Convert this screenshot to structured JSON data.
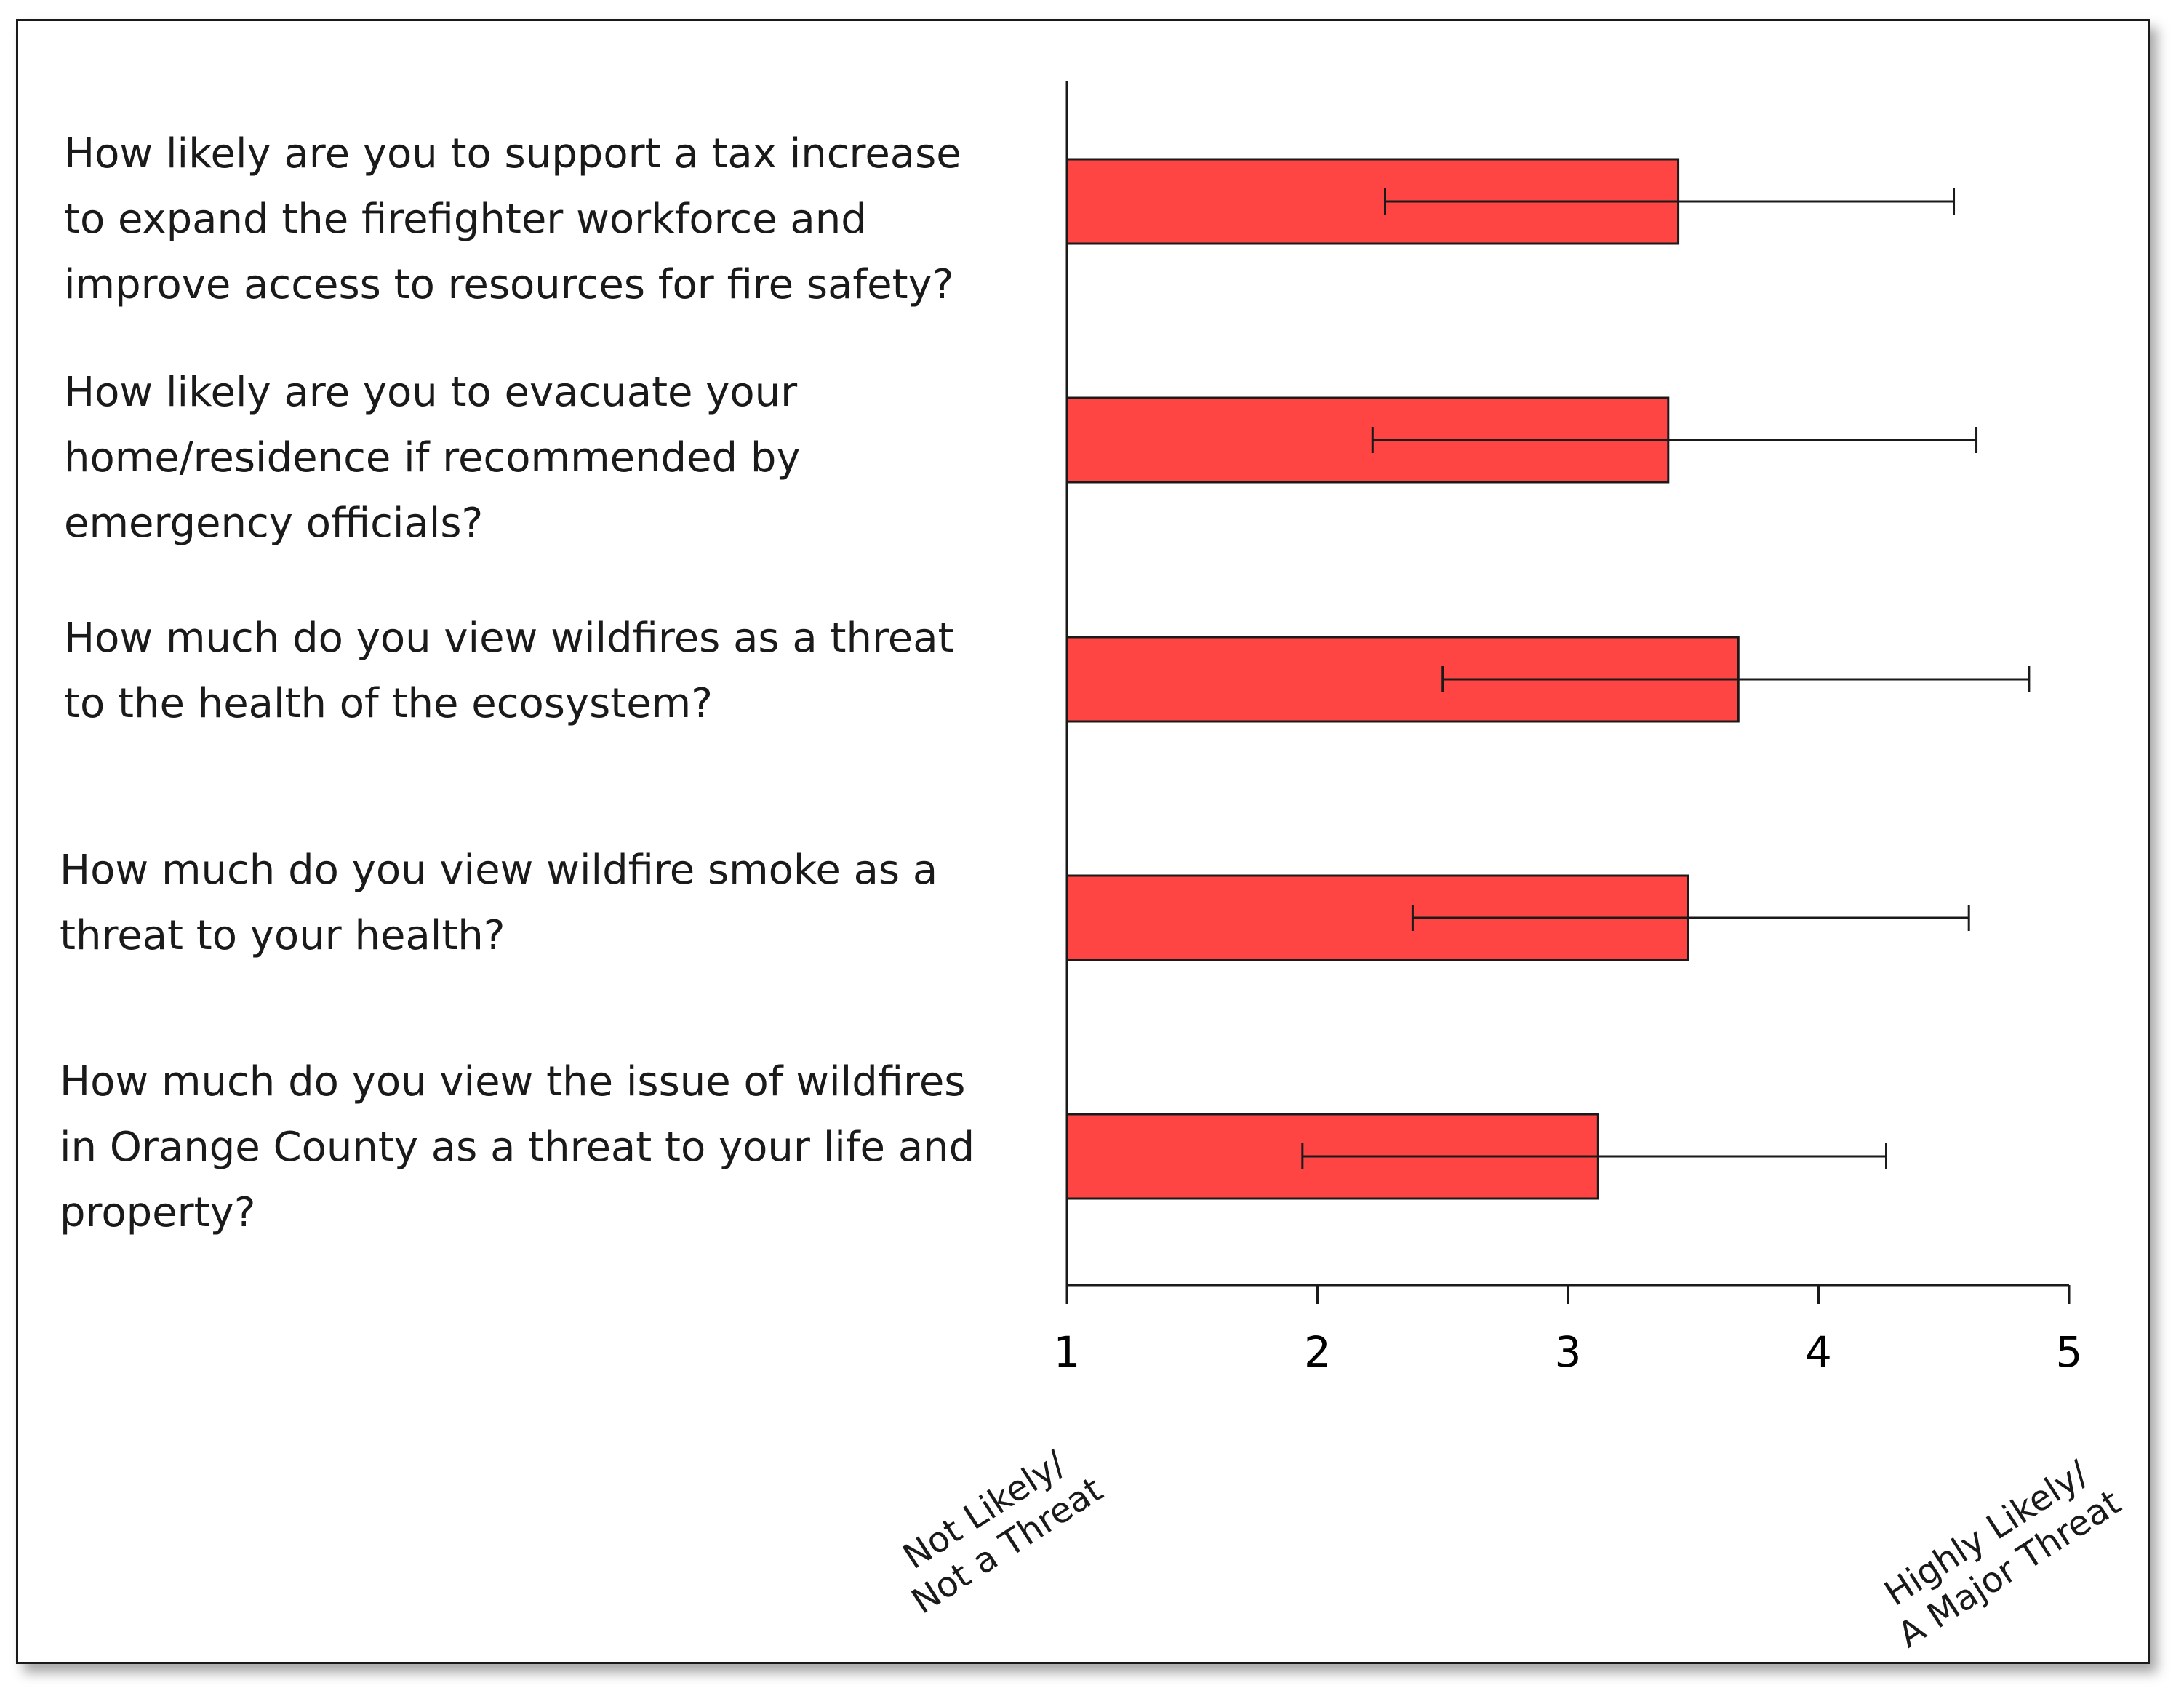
{
  "chart_data": {
    "type": "bar",
    "orientation": "horizontal",
    "categories": [
      "How likely are you to support a tax increase to expand the firefighter workforce and improve access to resources for fire safety?",
      "How likely are you to evacuate your home/residence if recommended by emergency officials?",
      "How much do you view wildfires as a threat to the health of the ecosystem?",
      "How much do you view wildfire smoke as a threat to your health?",
      "How much do you view the issue of wildfires in Orange County as a threat to your life and property?"
    ],
    "category_lines": [
      [
        "How likely are you to support a tax increase",
        "to expand the firefighter workforce and",
        "improve access to resources for fire safety?"
      ],
      [
        "How likely are you to evacuate your",
        "home/residence if recommended by",
        "emergency officials?"
      ],
      [
        "How much do you view wildfires as a threat",
        "to the health of the ecosystem?"
      ],
      [
        "How much do you view wildfire smoke as a",
        "threat to your health?"
      ],
      [
        "How much do you view the issue of wildfires",
        "in Orange County as a threat to your life and",
        "property?"
      ]
    ],
    "values": [
      3.44,
      3.4,
      3.68,
      3.48,
      3.12
    ],
    "error_low": [
      2.27,
      2.22,
      2.5,
      2.38,
      1.94
    ],
    "error_high": [
      4.54,
      4.63,
      4.84,
      4.6,
      4.27
    ],
    "xlim": [
      1,
      5
    ],
    "xticks": [
      "1",
      "2",
      "3",
      "4",
      "5"
    ],
    "xlabel_low": [
      "Not Likely/",
      "Not a Threat"
    ],
    "xlabel_high": [
      "Highly Likely/",
      "A Major Threat"
    ],
    "title": "",
    "xlabel": "",
    "ylabel": "",
    "grid": false,
    "bar_color": "#ff4444",
    "bar_edge_color": "#1a1a1a"
  }
}
